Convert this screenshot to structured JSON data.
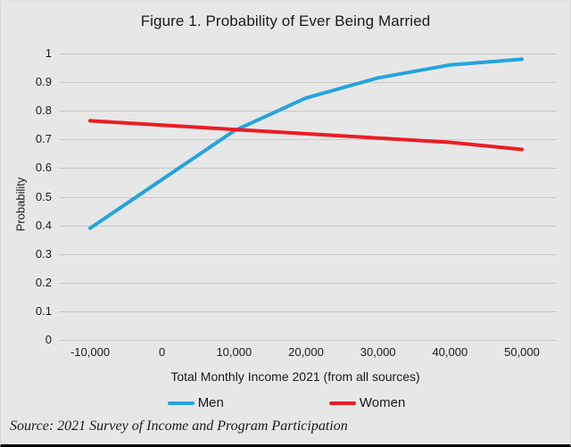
{
  "title": "Figure 1. Probability of Ever Being Married",
  "source_note": "Source: 2021 Survey of Income and Program Participation",
  "colors": {
    "men": "#25a3dd",
    "women": "#eb1c24",
    "background": "#e7e7e7",
    "gridline": "#c9c9c9",
    "text": "#1a1a1a"
  },
  "chart_data": {
    "type": "line",
    "title": "Figure 1. Probability of Ever Being Married",
    "xlabel": "Total Monthly Income 2021 (from all sources)",
    "ylabel": "Probability",
    "x": [
      -10000,
      0,
      10000,
      20000,
      30000,
      40000,
      50000
    ],
    "x_tick_labels": [
      "-10,000",
      "0",
      "10,000",
      "20,000",
      "30,000",
      "40,000",
      "50,000"
    ],
    "y_ticks": [
      {
        "value": 0,
        "label": "0"
      },
      {
        "value": 0.1,
        "label": "0.1"
      },
      {
        "value": 0.2,
        "label": "0.2"
      },
      {
        "value": 0.3,
        "label": "0.3"
      },
      {
        "value": 0.4,
        "label": "0.4"
      },
      {
        "value": 0.5,
        "label": "0.5"
      },
      {
        "value": 0.6,
        "label": "0.6"
      },
      {
        "value": 0.7,
        "label": "0.7"
      },
      {
        "value": 0.8,
        "label": "0.8"
      },
      {
        "value": 0.9,
        "label": "0.9"
      },
      {
        "value": 1,
        "label": "1"
      }
    ],
    "ylim": [
      0,
      1
    ],
    "grid": "horizontal",
    "legend_position": "bottom",
    "series": [
      {
        "name": "Men",
        "color": "#25a3dd",
        "values": [
          0.39,
          0.56,
          0.73,
          0.845,
          0.915,
          0.96,
          0.98
        ]
      },
      {
        "name": "Women",
        "color": "#eb1c24",
        "values": [
          0.765,
          0.75,
          0.735,
          0.72,
          0.705,
          0.69,
          0.665
        ]
      }
    ]
  }
}
